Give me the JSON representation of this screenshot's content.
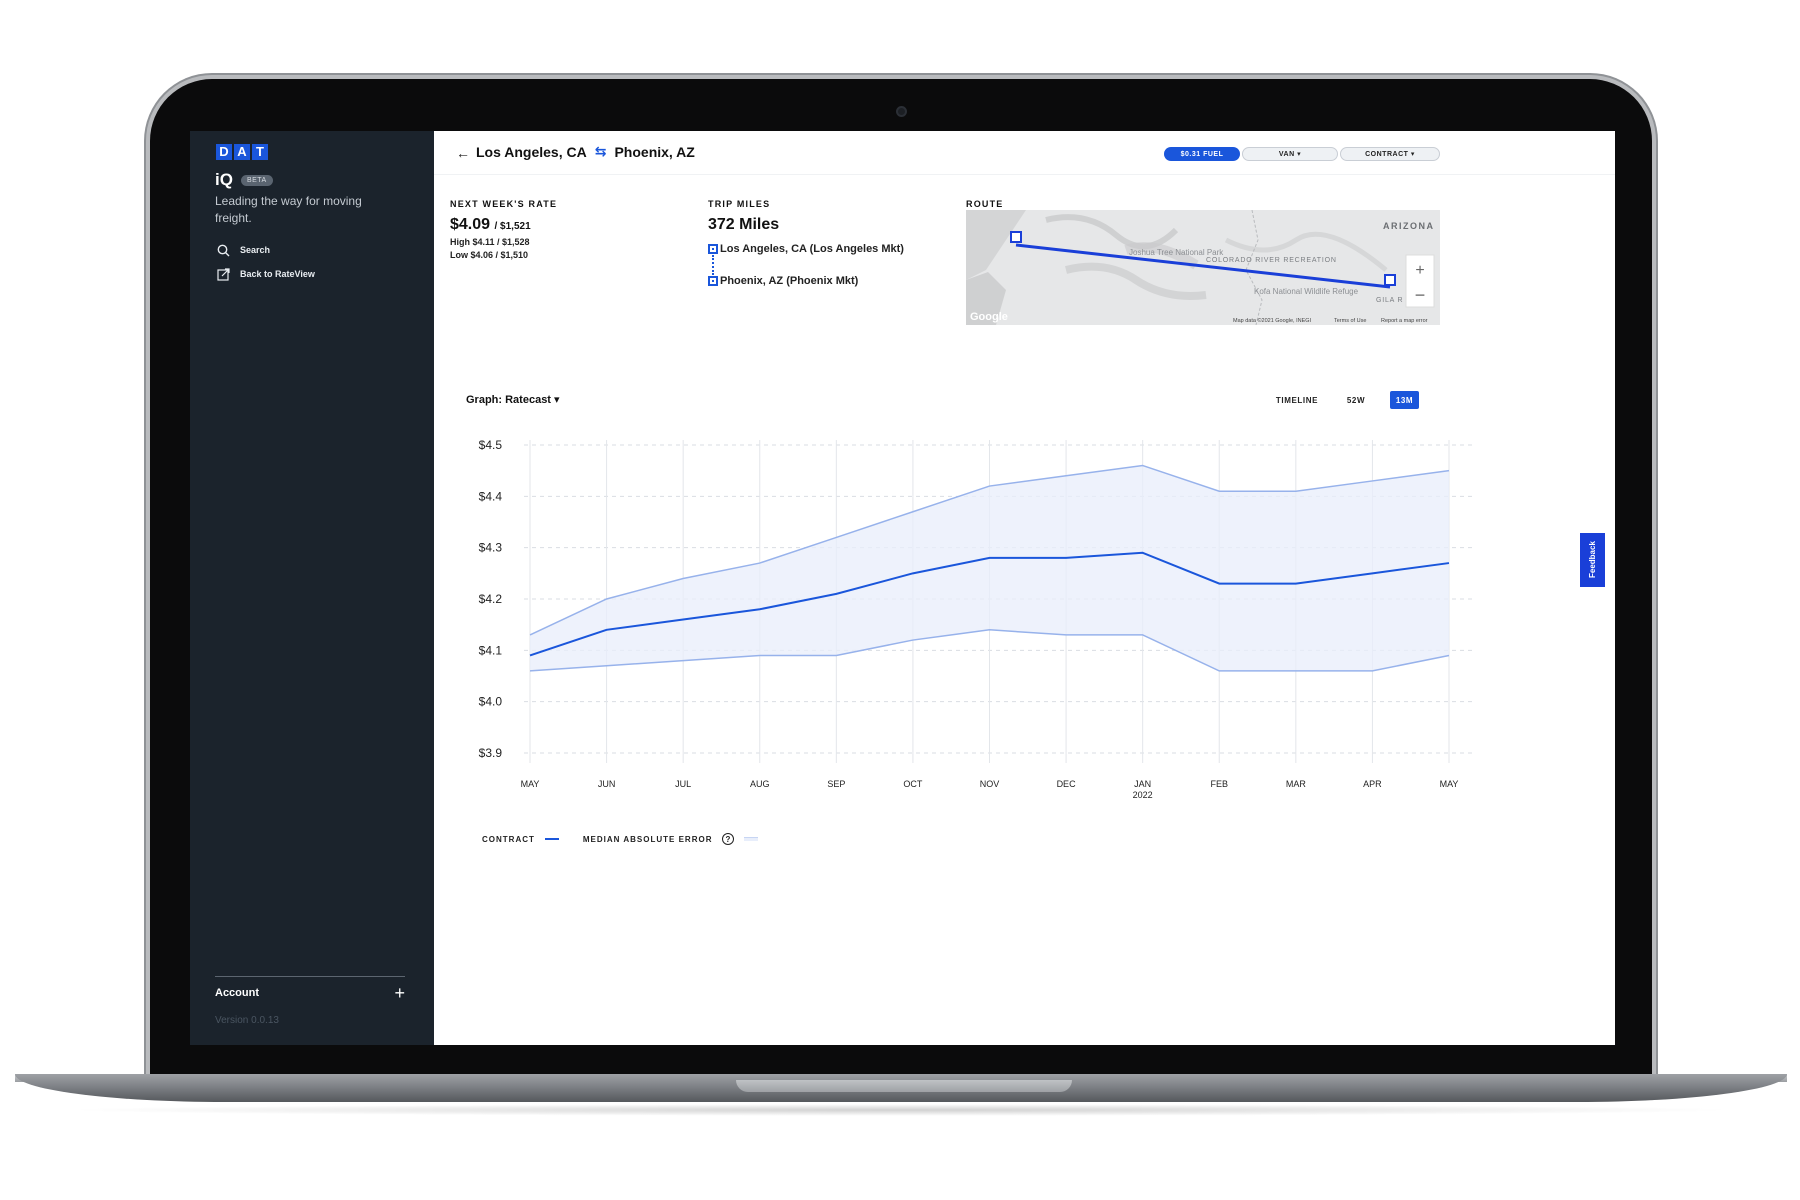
{
  "colors": {
    "accent": "#1a56db",
    "sidebar_bg": "#1b232c",
    "band": "#e8eefb",
    "band_line": "#97b2eb"
  },
  "sidebar": {
    "logo_letters": [
      "D",
      "A",
      "T"
    ],
    "product": "iQ",
    "beta": "BETA",
    "tagline": "Leading the way for moving freight.",
    "nav": [
      {
        "label": "Search",
        "icon": "search-icon"
      },
      {
        "label": "Back to RateView",
        "icon": "external-link-icon"
      }
    ],
    "account_label": "Account",
    "version": "Version 0.0.13"
  },
  "header": {
    "origin": "Los Angeles, CA",
    "destination": "Phoenix, AZ",
    "fuel_pill": "$0.31 FUEL",
    "equipment_pill": "VAN",
    "rate_type_pill": "CONTRACT"
  },
  "rate": {
    "label": "NEXT WEEK'S RATE",
    "value": "$4.09",
    "total": "/ $1,521",
    "high": "High $4.11 / $1,528",
    "low": "Low $4.06 / $1,510"
  },
  "trip": {
    "label": "TRIP MILES",
    "miles": "372 Miles",
    "origin_mkt": "Los Angeles, CA (Los Angeles Mkt)",
    "dest_mkt": "Phoenix, AZ (Phoenix Mkt)"
  },
  "route": {
    "label": "ROUTE",
    "map_labels": [
      "ARIZONA",
      "Joshua Tree National Park",
      "COLORADO RIVER RECREATION",
      "Kofa National Wildlife Refuge",
      "GILA R INDIAN"
    ],
    "attribution": "Map data ©2021 Google, INEGI",
    "terms": "Terms of Use",
    "report": "Report a map error",
    "google": "Google"
  },
  "graph": {
    "selector": "Graph: Ratecast",
    "ranges": [
      "TIMELINE",
      "52W",
      "13M"
    ],
    "active_range": "13M"
  },
  "legend": {
    "contract": "CONTRACT",
    "mae": "MEDIAN ABSOLUTE ERROR",
    "help": "?"
  },
  "feedback": "Feedback",
  "chart_data": {
    "type": "line",
    "categories": [
      "MAY",
      "JUN",
      "JUL",
      "AUG",
      "SEP",
      "OCT",
      "NOV",
      "DEC",
      "JAN",
      "FEB",
      "MAR",
      "APR",
      "MAY"
    ],
    "year_label": {
      "index": 8,
      "text": "2022"
    },
    "y_ticks": [
      "$4.5",
      "$4.4",
      "$4.3",
      "$4.2",
      "$4.1",
      "$4.0",
      "$3.9"
    ],
    "ylim": [
      3.9,
      4.5
    ],
    "series": [
      {
        "name": "CONTRACT",
        "values": [
          4.09,
          4.14,
          4.16,
          4.18,
          4.21,
          4.25,
          4.28,
          4.28,
          4.29,
          4.23,
          4.23,
          4.25,
          4.27
        ]
      }
    ],
    "band": {
      "name": "MEDIAN ABSOLUTE ERROR",
      "upper": [
        4.13,
        4.2,
        4.24,
        4.27,
        4.32,
        4.37,
        4.42,
        4.44,
        4.46,
        4.41,
        4.41,
        4.43,
        4.45
      ],
      "lower": [
        4.06,
        4.07,
        4.08,
        4.09,
        4.09,
        4.12,
        4.14,
        4.13,
        4.13,
        4.06,
        4.06,
        4.06,
        4.09
      ]
    },
    "grid": true
  }
}
